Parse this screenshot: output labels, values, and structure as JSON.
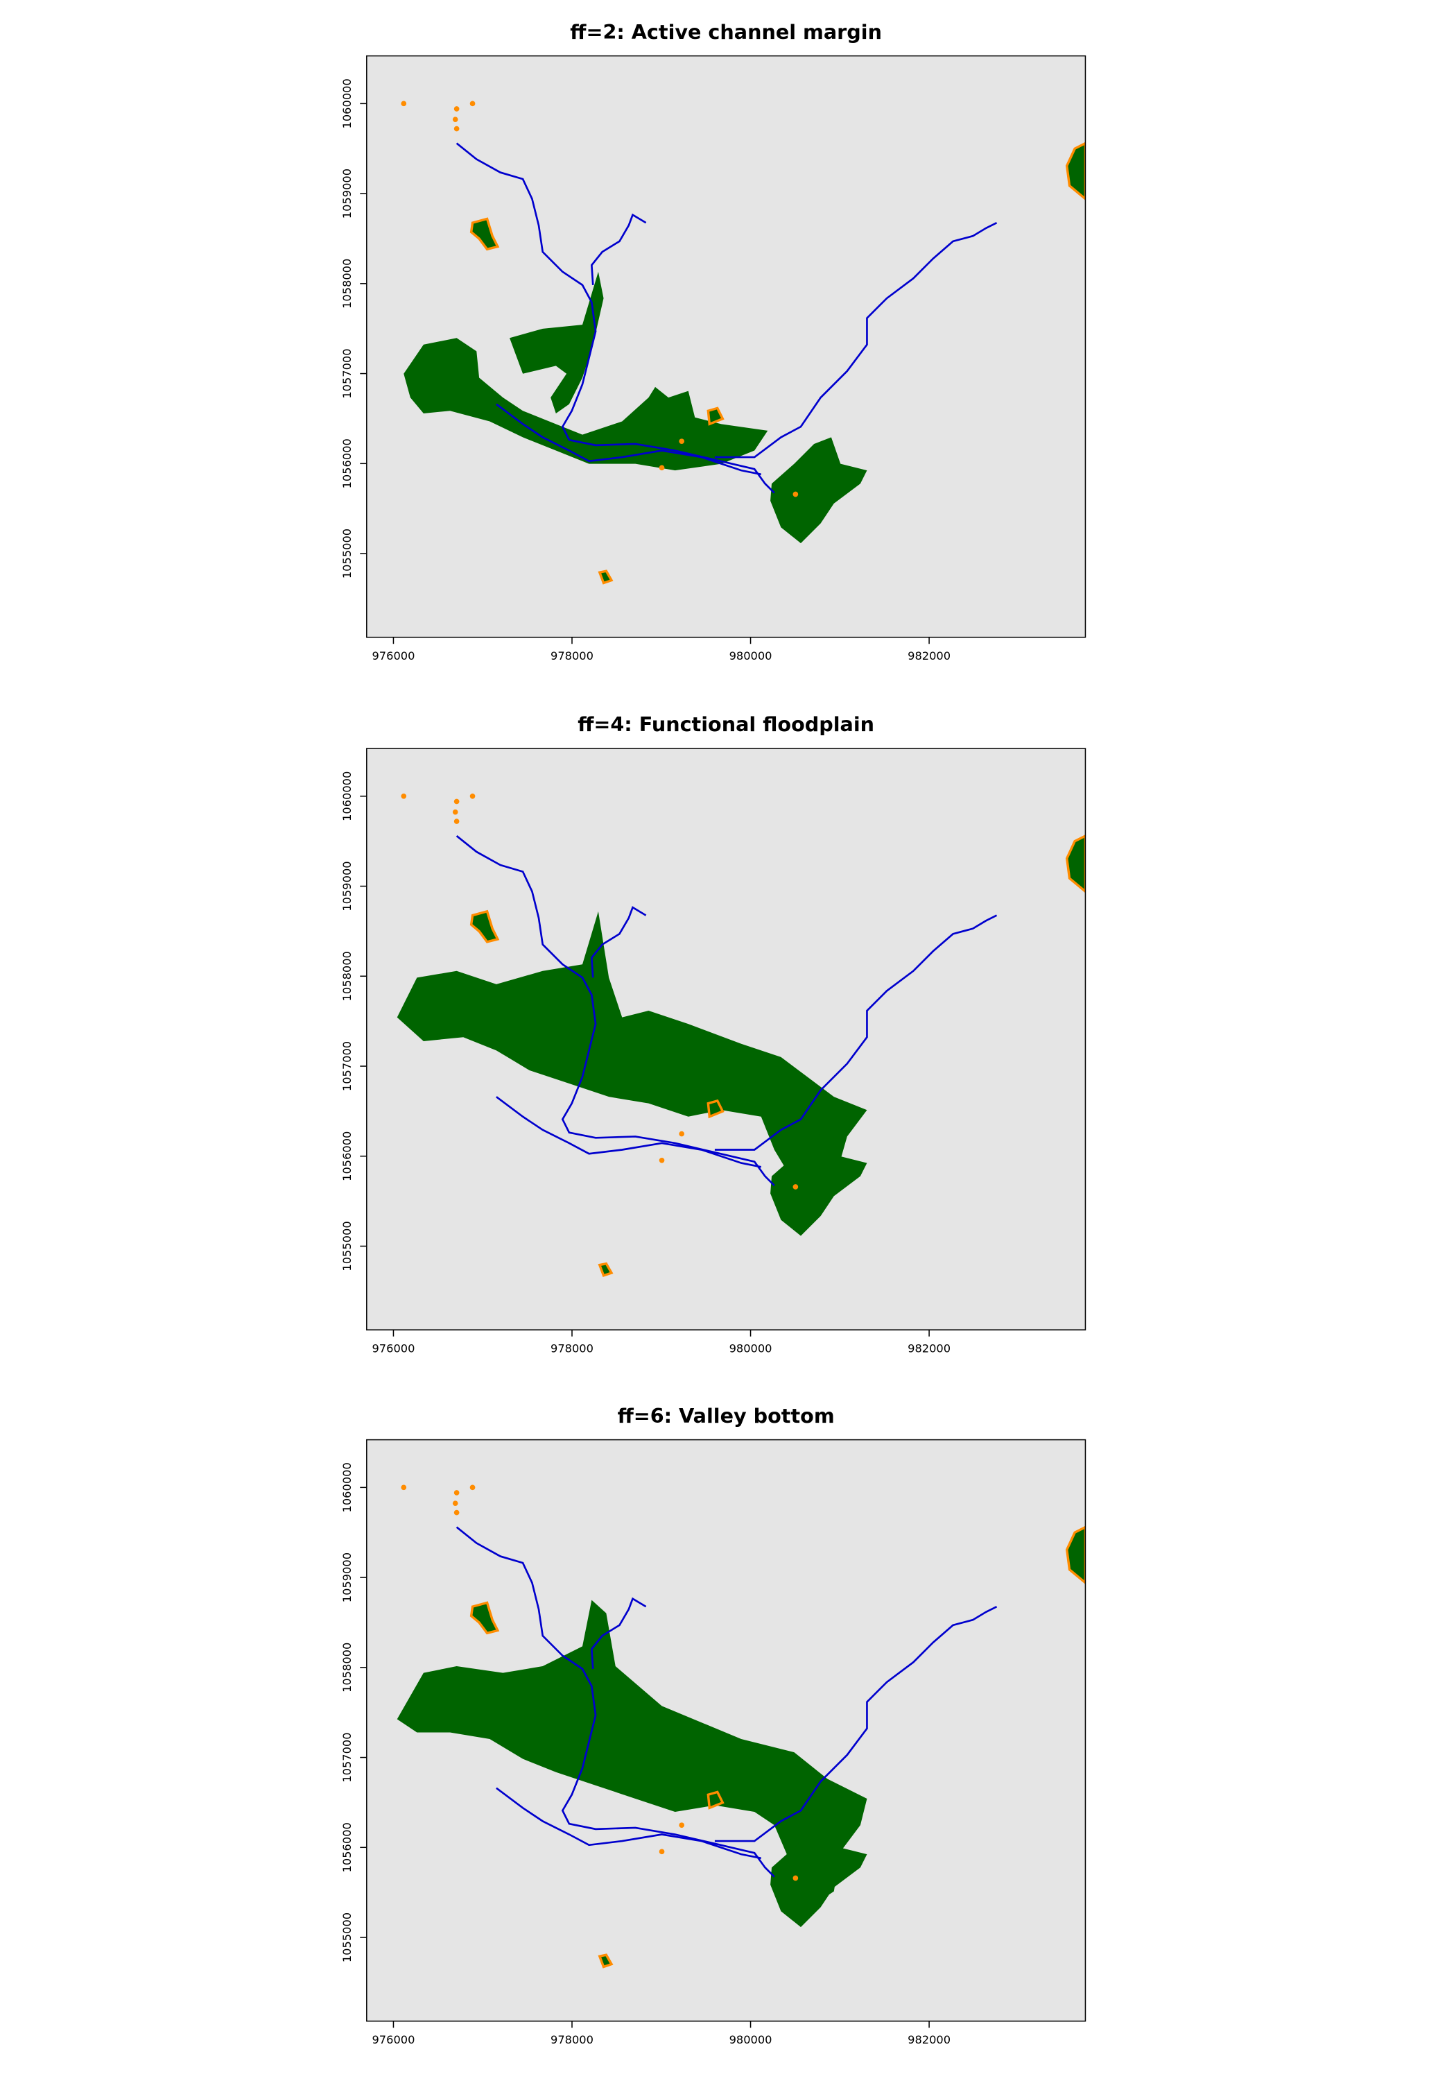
{
  "panels": [
    {
      "title": "ff=2: Active channel margin",
      "xlim": [
        975700,
        983750
      ],
      "ylim": [
        1054070,
        1060530
      ],
      "xticks": [
        976000,
        978000,
        980000,
        982000
      ],
      "yticks": [
        1055000,
        1056000,
        1057000,
        1058000,
        1059000,
        1060000
      ]
    },
    {
      "title": "ff=4: Functional floodplain",
      "xlim": [
        975700,
        983750
      ],
      "ylim": [
        1054070,
        1060530
      ],
      "xticks": [
        976000,
        978000,
        980000,
        982000
      ],
      "yticks": [
        1055000,
        1056000,
        1057000,
        1058000,
        1059000,
        1060000
      ]
    },
    {
      "title": "ff=6: Valley bottom",
      "xlim": [
        975700,
        983750
      ],
      "ylim": [
        1054070,
        1060530
      ],
      "xticks": [
        976000,
        978000,
        980000,
        982000
      ],
      "yticks": [
        1055000,
        1056000,
        1057000,
        1058000,
        1059000,
        1060000
      ]
    }
  ]
}
